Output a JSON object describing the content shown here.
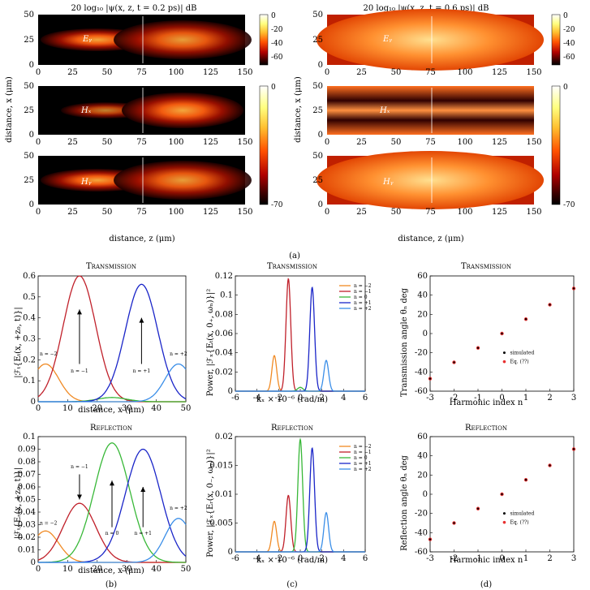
{
  "top": {
    "left_title": "20 log₁₀ |ψ(x, z, t = 0.2 ps)| dB",
    "right_title": "20 log₁₀ |ψ(x, z, t = 0.6 ps)| dB",
    "ylabel": "distance, x (μm)",
    "xlabel": "distance, z (μm)",
    "field_labels": [
      "Eᵧ",
      "Hₓ",
      "Hᵧ"
    ],
    "x_ticks": [
      "0",
      "25",
      "50",
      "75",
      "100",
      "125",
      "150"
    ],
    "y_ticks": [
      "0",
      "25",
      "50"
    ],
    "colorbar_left_1": [
      "0",
      "-20",
      "-40",
      "-60"
    ],
    "colorbar_left_2": [
      "0",
      "-70"
    ],
    "colorbar_right_1": [
      "0",
      "-20",
      "-40",
      "-60"
    ],
    "colorbar_right_2": [
      "0",
      "-70"
    ],
    "caption": "(a)"
  },
  "panel_b": {
    "trans_title": "Transmission",
    "refl_title": "Reflection",
    "trans_ylabel": "|ℱₜ{Eₜ(x, +z₀, t)}|",
    "refl_ylabel": "|ℱₜ{Eᵣ(x, +z₀, t)}|",
    "xlabel": "distance, x (μm)",
    "caption": "(b)",
    "x_ticks": [
      "0",
      "10",
      "20",
      "30",
      "40",
      "50"
    ],
    "trans_y_ticks": [
      "0",
      "0.1",
      "0.2",
      "0.3",
      "0.4",
      "0.5",
      "0.6"
    ],
    "refl_y_ticks": [
      "0",
      "0.01",
      "0.02",
      "0.03",
      "0.04",
      "0.05",
      "0.06",
      "0.07",
      "0.08",
      "0.09",
      "0.1"
    ],
    "trans_labels": [
      "n = −2",
      "n = −1",
      "n = +1",
      "n = +2"
    ],
    "refl_labels": [
      "n = −2",
      "n = −1",
      "n = 0",
      "n = +1",
      "n = +2"
    ]
  },
  "panel_c": {
    "trans_title": "Transmission",
    "refl_title": "Reflection",
    "trans_ylabel": "Power, |ℱₓ{Eₜ(x, 0₊, ωₙ)}|²",
    "refl_ylabel": "Power, |ℱₓ{Eᵣ(x, 0₋, ωₙ)}|²",
    "xlabel": "kₓ × 10⁻⁶ (rad/m)",
    "caption": "(c)",
    "x_ticks": [
      "-6",
      "-4",
      "-2",
      "0",
      "2",
      "4",
      "6"
    ],
    "trans_y_ticks": [
      "0",
      "0.02",
      "0.04",
      "0.06",
      "0.08",
      "0.1",
      "0.12"
    ],
    "refl_y_ticks": [
      "0",
      "0.005",
      "0.01",
      "0.015",
      "0.02"
    ],
    "legend": [
      "n = −2",
      "n = −1",
      "n = 0",
      "n = +1",
      "n = +2"
    ]
  },
  "panel_d": {
    "trans_title": "Transmission",
    "refl_title": "Reflection",
    "trans_ylabel": "Transmission angle θₙ deg",
    "refl_ylabel": "Reflection angle θₙ deg",
    "xlabel": "Harmonic index n",
    "caption": "(d)",
    "x_ticks": [
      "-3",
      "-2",
      "-1",
      "0",
      "1",
      "2",
      "3"
    ],
    "y_ticks": [
      "-60",
      "-40",
      "-20",
      "0",
      "20",
      "40",
      "60"
    ],
    "legend": [
      "simulated",
      "Eq. (??)"
    ]
  },
  "colors": {
    "n_m2": "#f08a24",
    "n_m1": "#c0202a",
    "n_0": "#38b838",
    "n_p1": "#1a25c8",
    "n_p2": "#3a8ee8",
    "sim": "#000000",
    "eq": "#e83030"
  },
  "chart_data": [
    {
      "type": "line",
      "title": "Transmission",
      "xlabel": "distance, x (μm)",
      "ylabel": "|ℱₜ{Eₜ(x, +z₀, t)}|",
      "xlim": [
        0,
        50
      ],
      "ylim": [
        0,
        0.6
      ],
      "series": [
        {
          "name": "n = −2",
          "color": "#f08a24",
          "peak_x": 2.5,
          "peak_y": 0.18,
          "width": 4.5
        },
        {
          "name": "n = −1",
          "color": "#c0202a",
          "peak_x": 14,
          "peak_y": 0.6,
          "width": 5.5
        },
        {
          "color": "#38b838",
          "peak_x": 25,
          "peak_y": 0.02,
          "width": 5
        },
        {
          "name": "n = +1",
          "color": "#1a25c8",
          "peak_x": 35,
          "peak_y": 0.56,
          "width": 5.5
        },
        {
          "name": "n = +2",
          "color": "#3a8ee8",
          "peak_x": 47.5,
          "peak_y": 0.18,
          "width": 4.5
        }
      ]
    },
    {
      "type": "line",
      "title": "Reflection",
      "xlabel": "distance, x (μm)",
      "ylabel": "|ℱₜ{Eᵣ(x, +z₀, t)}|",
      "xlim": [
        0,
        50
      ],
      "ylim": [
        0,
        0.1
      ],
      "series": [
        {
          "name": "n = −2",
          "color": "#f08a24",
          "peak_x": 2.5,
          "peak_y": 0.025,
          "width": 4.5
        },
        {
          "name": "n = −1",
          "color": "#c0202a",
          "peak_x": 14,
          "peak_y": 0.047,
          "width": 5.5
        },
        {
          "name": "n = 0",
          "color": "#38b838",
          "peak_x": 25,
          "peak_y": 0.095,
          "width": 6
        },
        {
          "name": "n = +1",
          "color": "#1a25c8",
          "peak_x": 35.5,
          "peak_y": 0.09,
          "width": 6
        },
        {
          "name": "n = +2",
          "color": "#3a8ee8",
          "peak_x": 47.5,
          "peak_y": 0.035,
          "width": 4.5
        }
      ]
    },
    {
      "type": "line",
      "title": "Transmission",
      "xlabel": "kₓ × 10⁻⁶ (rad/m)",
      "ylabel": "Power, |ℱₓ{Eₜ(x, 0₊, ωₙ)}|²",
      "xlim": [
        -6,
        6
      ],
      "ylim": [
        0,
        0.12
      ],
      "series": [
        {
          "name": "n = −2",
          "color": "#f08a24",
          "peak_x": -2.4,
          "peak_y": 0.037,
          "width": 0.22
        },
        {
          "name": "n = −1",
          "color": "#c0202a",
          "peak_x": -1.1,
          "peak_y": 0.117,
          "width": 0.22
        },
        {
          "name": "n = 0",
          "color": "#38b838",
          "peak_x": 0,
          "peak_y": 0.004,
          "width": 0.25
        },
        {
          "name": "n = +1",
          "color": "#1a25c8",
          "peak_x": 1.1,
          "peak_y": 0.108,
          "width": 0.22
        },
        {
          "name": "n = +2",
          "color": "#3a8ee8",
          "peak_x": 2.4,
          "peak_y": 0.032,
          "width": 0.22
        }
      ]
    },
    {
      "type": "line",
      "title": "Reflection",
      "xlabel": "kₓ × 10⁻⁶ (rad/m)",
      "ylabel": "Power, |ℱₓ{Eᵣ(x, 0₋, ωₙ)}|²",
      "xlim": [
        -6,
        6
      ],
      "ylim": [
        0,
        0.02
      ],
      "series": [
        {
          "name": "n = −2",
          "color": "#f08a24",
          "peak_x": -2.4,
          "peak_y": 0.0053,
          "width": 0.22
        },
        {
          "name": "n = −1",
          "color": "#c0202a",
          "peak_x": -1.1,
          "peak_y": 0.0098,
          "width": 0.22
        },
        {
          "name": "n = 0",
          "color": "#38b838",
          "peak_x": 0,
          "peak_y": 0.0195,
          "width": 0.22
        },
        {
          "name": "n = +1",
          "color": "#1a25c8",
          "peak_x": 1.1,
          "peak_y": 0.018,
          "width": 0.22
        },
        {
          "name": "n = +2",
          "color": "#3a8ee8",
          "peak_x": 2.4,
          "peak_y": 0.0068,
          "width": 0.22
        }
      ]
    },
    {
      "type": "scatter",
      "title": "Transmission",
      "xlabel": "Harmonic index n",
      "ylabel": "Transmission angle θₙ deg",
      "xlim": [
        -3,
        3
      ],
      "ylim": [
        -60,
        60
      ],
      "x": [
        -3,
        -2,
        -1,
        0,
        1,
        2,
        3
      ],
      "series": [
        {
          "name": "simulated",
          "values": [
            -47,
            -30,
            -15,
            0,
            15,
            30,
            47
          ]
        },
        {
          "name": "Eq. (??)",
          "values": [
            -47,
            -30,
            -15,
            0,
            15,
            30,
            47
          ]
        }
      ]
    },
    {
      "type": "scatter",
      "title": "Reflection",
      "xlabel": "Harmonic index n",
      "ylabel": "Reflection angle θₙ deg",
      "xlim": [
        -3,
        3
      ],
      "ylim": [
        -60,
        60
      ],
      "x": [
        -3,
        -2,
        -1,
        0,
        1,
        2,
        3
      ],
      "series": [
        {
          "name": "simulated",
          "values": [
            -47,
            -30,
            -15,
            0,
            15,
            30,
            47
          ]
        },
        {
          "name": "Eq. (??)",
          "values": [
            -47,
            -30,
            -15,
            0,
            15,
            30,
            47
          ]
        }
      ]
    }
  ]
}
